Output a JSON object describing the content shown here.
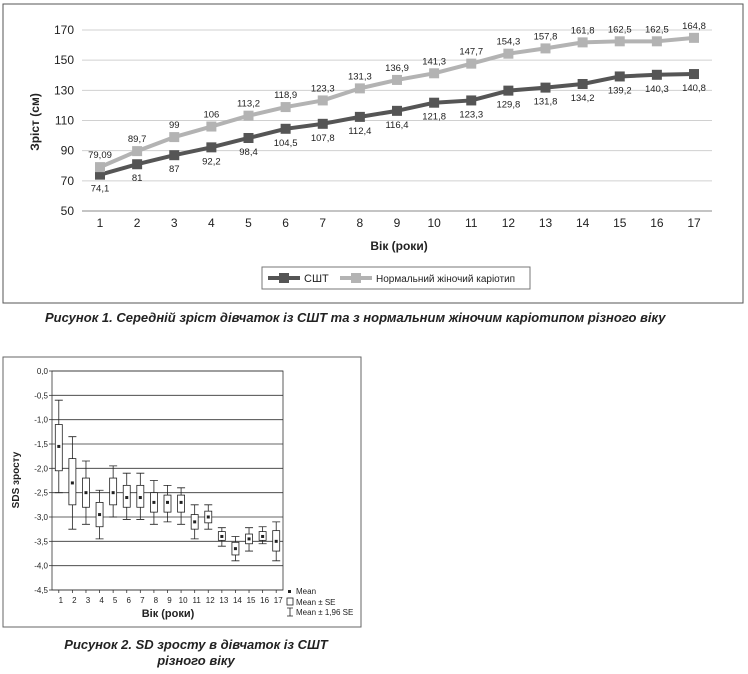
{
  "figure1": {
    "caption": "Рисунок 1. Середній зріст дівчаток із СШТ та з нормальним жіночим каріотипом різного віку",
    "chart_data": {
      "type": "line",
      "x": [
        1,
        2,
        3,
        4,
        5,
        6,
        7,
        8,
        9,
        10,
        11,
        12,
        13,
        14,
        15,
        16,
        17
      ],
      "xlabel": "Вік (роки)",
      "ylabel": "Зріст (см)",
      "ylim": [
        50,
        170
      ],
      "yticks": [
        50,
        70,
        90,
        110,
        130,
        150,
        170
      ],
      "legend_position": "bottom",
      "series": [
        {
          "name": "СШТ",
          "color": "#555555",
          "values": [
            74.1,
            81,
            87,
            92.2,
            98.4,
            104.5,
            107.8,
            112.4,
            116.4,
            121.8,
            123.3,
            129.8,
            131.8,
            134.2,
            139.2,
            140.3,
            140.8
          ],
          "labels": [
            "74,1",
            "81",
            "87",
            "92,2",
            "98,4",
            "104,5",
            "107,8",
            "112,4",
            "116,4",
            "121,8",
            "123,3",
            "129,8",
            "131,8",
            "134,2",
            "139,2",
            "140,3",
            "140,8"
          ]
        },
        {
          "name": "Нормальний жіночий каріотип",
          "color": "#b3b3b3",
          "values": [
            79.09,
            89.7,
            99,
            106,
            113.2,
            118.9,
            123.3,
            131.3,
            136.9,
            141.3,
            147.7,
            154.3,
            157.8,
            161.8,
            162.5,
            162.5,
            164.8
          ],
          "labels": [
            "79,09",
            "89,7",
            "99",
            "106",
            "113,2",
            "118,9",
            "123,3",
            "131,3",
            "136,9",
            "141,3",
            "147,7",
            "154,3",
            "157,8",
            "161,8",
            "162,5",
            "162,5",
            "164,8"
          ]
        }
      ]
    }
  },
  "figure2": {
    "caption_line1": "Рисунок 2. SD зросту в дівчаток із СШТ",
    "caption_line2": "різного віку",
    "chart_data": {
      "type": "box",
      "xlabel": "Вік (роки)",
      "ylabel": "SDS зросту",
      "ylim": [
        -4.5,
        0
      ],
      "yticks": [
        "0,0",
        "-0,5",
        "-1,0",
        "-1,5",
        "-2,0",
        "-2,5",
        "-3,0",
        "-3,5",
        "-4,0",
        "-4,5"
      ],
      "ytick_values": [
        0,
        -0.5,
        -1,
        -1.5,
        -2,
        -2.5,
        -3,
        -3.5,
        -4,
        -4.5
      ],
      "categories": [
        "1",
        "2",
        "3",
        "4",
        "5",
        "6",
        "7",
        "8",
        "9",
        "10",
        "11",
        "12",
        "13",
        "14",
        "15",
        "16",
        "17"
      ],
      "mean": [
        -1.55,
        -2.3,
        -2.5,
        -2.95,
        -2.5,
        -2.6,
        -2.6,
        -2.7,
        -2.7,
        -2.7,
        -3.1,
        -3.0,
        -3.4,
        -3.65,
        -3.45,
        -3.4,
        -3.5
      ],
      "se_low": [
        -2.05,
        -2.75,
        -2.8,
        -3.2,
        -2.75,
        -2.8,
        -2.8,
        -2.9,
        -2.9,
        -2.9,
        -3.25,
        -3.12,
        -3.48,
        -3.78,
        -3.55,
        -3.48,
        -3.7
      ],
      "se_high": [
        -1.1,
        -1.8,
        -2.2,
        -2.7,
        -2.2,
        -2.35,
        -2.35,
        -2.5,
        -2.55,
        -2.55,
        -2.95,
        -2.88,
        -3.3,
        -3.52,
        -3.35,
        -3.3,
        -3.28
      ],
      "ci_low": [
        -2.5,
        -3.25,
        -3.15,
        -3.45,
        -3.0,
        -3.05,
        -3.05,
        -3.15,
        -3.1,
        -3.15,
        -3.45,
        -3.25,
        -3.6,
        -3.9,
        -3.7,
        -3.55,
        -3.9
      ],
      "ci_high": [
        -0.6,
        -1.35,
        -1.85,
        -2.45,
        -1.95,
        -2.1,
        -2.1,
        -2.25,
        -2.35,
        -2.4,
        -2.75,
        -2.75,
        -3.22,
        -3.4,
        -3.22,
        -3.2,
        -3.1
      ],
      "legend": [
        "Mean",
        "Mean ± SE",
        "Mean ± 1,96 SE"
      ]
    }
  }
}
